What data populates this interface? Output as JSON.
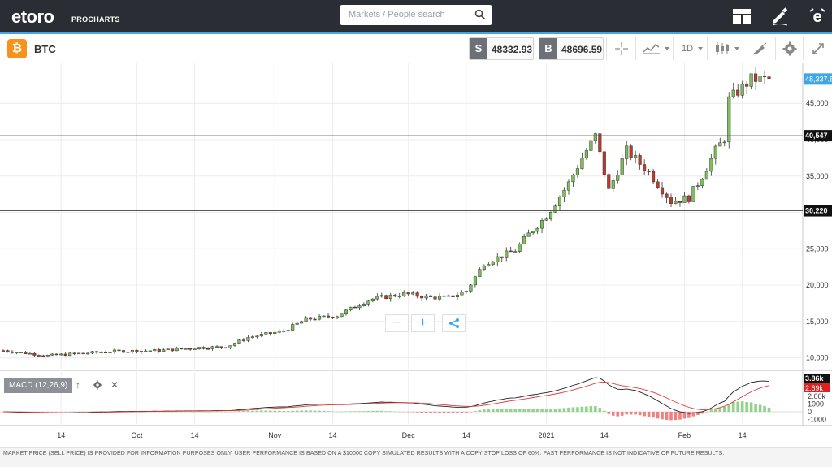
{
  "header": {
    "logo": "etoro",
    "logo_sub": "PROCHARTS",
    "search_placeholder": "Markets / People search",
    "icons": [
      "layout-icon",
      "pencil-icon",
      "etoro-profile-icon"
    ]
  },
  "instrument": {
    "name": "BTC",
    "coin_symbol": "₿",
    "sell_tag": "S",
    "sell_price": "48332.93",
    "buy_tag": "B",
    "buy_price": "48696.59",
    "timeframe": "1D"
  },
  "macd": {
    "label": "MACD (12,26,9)"
  },
  "footer": {
    "disclaimer": "MARKET PRICE (SELL PRICE) IS PROVIDED FOR INFORMATION PURPOSES ONLY. USER PERFORMANCE IS BASED ON A $10000 COPY SIMULATED RESULTS WITH A COPY STOP LOSS OF 60%. PAST PERFORMANCE IS NOT INDICATIVE OF FUTURE RESULTS."
  },
  "chart_data": {
    "type": "candlestick",
    "ylim": [
      8500,
      50500
    ],
    "y_ticks": [
      "45,000",
      "40,000",
      "35,000",
      "30,000",
      "25,000",
      "20,000",
      "15,000",
      "10,000"
    ],
    "y_tick_values": [
      45000,
      40000,
      35000,
      30000,
      25000,
      20000,
      15000,
      10000
    ],
    "x_ticks": [
      "14",
      "Oct",
      "14",
      "Nov",
      "14",
      "Dec",
      "14",
      "2021",
      "14",
      "Feb",
      "14"
    ],
    "x_tick_days": [
      13,
      30,
      43,
      61,
      74,
      91,
      104,
      122,
      135,
      153,
      166
    ],
    "current_price_label": "48,337.8",
    "current_price": 48337.8,
    "hlines": [
      {
        "label": "40,547",
        "value": 40547
      },
      {
        "label": "30,220",
        "value": 30220
      }
    ],
    "macd": {
      "ylim": [
        -1800,
        5200
      ],
      "y_ticks": [
        "2.00k",
        "1000",
        "0",
        "-1000"
      ],
      "y_tick_values": [
        2000,
        1000,
        0,
        -1000
      ],
      "macd_value_label": "3.86k",
      "signal_value_label": "2.69k"
    }
  }
}
